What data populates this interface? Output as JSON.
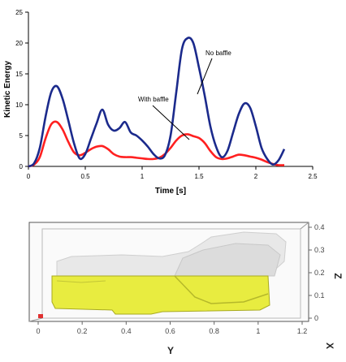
{
  "chart_data": [
    {
      "type": "line",
      "title": "",
      "xlabel": "Time [s]",
      "ylabel": "Kinetic Energy",
      "xlim": [
        0,
        2.5
      ],
      "ylim": [
        0,
        25
      ],
      "x_ticks": [
        "0",
        "0.5",
        "1",
        "1.5",
        "2",
        "2.5"
      ],
      "y_ticks": [
        "0",
        "5",
        "10",
        "15",
        "20",
        "25"
      ],
      "grid": false,
      "annotations": [
        {
          "text": "No baffle",
          "series": "no_baffle"
        },
        {
          "text": "With baffle",
          "series": "with_baffle"
        }
      ],
      "series": [
        {
          "key": "no_baffle",
          "color": "#1b2a8c",
          "x": [
            0,
            0.05,
            0.1,
            0.15,
            0.2,
            0.25,
            0.3,
            0.35,
            0.4,
            0.45,
            0.5,
            0.55,
            0.6,
            0.65,
            0.7,
            0.75,
            0.8,
            0.85,
            0.9,
            0.95,
            1.0,
            1.05,
            1.1,
            1.15,
            1.2,
            1.25,
            1.3,
            1.35,
            1.4,
            1.45,
            1.5,
            1.55,
            1.6,
            1.65,
            1.7,
            1.75,
            1.8,
            1.85,
            1.9,
            1.95,
            2.0,
            2.05,
            2.1,
            2.15,
            2.2,
            2.25
          ],
          "y": [
            0,
            0.5,
            3.0,
            8.0,
            12.0,
            13.0,
            11.0,
            7.5,
            3.8,
            1.3,
            2.0,
            4.5,
            7.0,
            9.2,
            6.8,
            5.8,
            6.2,
            7.2,
            5.5,
            5.0,
            4.2,
            3.2,
            2.0,
            1.3,
            1.8,
            5.0,
            12.0,
            19.0,
            20.8,
            20.0,
            16.0,
            11.5,
            6.5,
            3.2,
            1.5,
            2.5,
            5.5,
            8.5,
            10.2,
            9.5,
            6.5,
            3.0,
            1.2,
            0.3,
            1.0,
            2.8
          ]
        },
        {
          "key": "with_baffle",
          "color": "#ff2020",
          "x": [
            0,
            0.05,
            0.1,
            0.15,
            0.2,
            0.25,
            0.3,
            0.35,
            0.4,
            0.45,
            0.5,
            0.55,
            0.6,
            0.65,
            0.7,
            0.75,
            0.8,
            0.85,
            0.9,
            0.95,
            1.0,
            1.05,
            1.1,
            1.15,
            1.2,
            1.25,
            1.3,
            1.35,
            1.4,
            1.45,
            1.5,
            1.55,
            1.6,
            1.65,
            1.7,
            1.75,
            1.8,
            1.85,
            1.9,
            1.95,
            2.0,
            2.05,
            2.1,
            2.15,
            2.2,
            2.25
          ],
          "y": [
            0,
            0.3,
            1.5,
            4.5,
            6.8,
            7.2,
            6.0,
            4.0,
            2.3,
            1.8,
            2.2,
            2.8,
            3.2,
            3.3,
            2.8,
            2.0,
            1.6,
            1.5,
            1.5,
            1.4,
            1.3,
            1.2,
            1.2,
            1.4,
            2.0,
            3.0,
            4.2,
            5.0,
            5.2,
            4.9,
            4.6,
            3.8,
            2.5,
            1.5,
            1.2,
            1.3,
            1.6,
            1.9,
            1.8,
            1.6,
            1.4,
            1.1,
            0.7,
            0.4,
            0.2,
            0.2
          ]
        }
      ]
    },
    {
      "type": "other",
      "description_axes": true,
      "y_axis_label": "Y",
      "z_axis_label": "Z",
      "x_axis_label": "X",
      "y_ticks": [
        "0",
        "0.2",
        "0.4",
        "0.6",
        "0.8",
        "1",
        "1.2"
      ],
      "z_ticks": [
        "0",
        "0.1",
        "0.2",
        "0.3",
        "0.4"
      ],
      "colors": {
        "water": "#e8ec40",
        "water_edge": "#a8aa20",
        "air": "#e6e6e6",
        "frame": "#555555"
      }
    }
  ]
}
